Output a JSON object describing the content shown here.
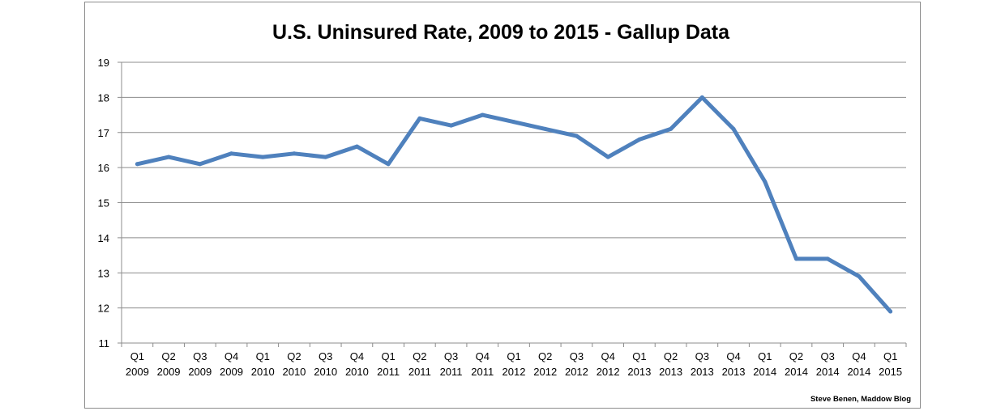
{
  "chart_data": {
    "type": "line",
    "title": "U.S. Uninsured Rate, 2009 to 2015 - Gallup Data",
    "xlabel": "",
    "ylabel": "",
    "ylim": [
      11,
      19
    ],
    "yticks": [
      11,
      12,
      13,
      14,
      15,
      16,
      17,
      18,
      19
    ],
    "grid": true,
    "legend": "none",
    "line_color": "#4f81bd",
    "categories": [
      [
        "Q1",
        "2009"
      ],
      [
        "Q2",
        "2009"
      ],
      [
        "Q3",
        "2009"
      ],
      [
        "Q4",
        "2009"
      ],
      [
        "Q1",
        "2010"
      ],
      [
        "Q2",
        "2010"
      ],
      [
        "Q3",
        "2010"
      ],
      [
        "Q4",
        "2010"
      ],
      [
        "Q1",
        "2011"
      ],
      [
        "Q2",
        "2011"
      ],
      [
        "Q3",
        "2011"
      ],
      [
        "Q4",
        "2011"
      ],
      [
        "Q1",
        "2012"
      ],
      [
        "Q2",
        "2012"
      ],
      [
        "Q3",
        "2012"
      ],
      [
        "Q4",
        "2012"
      ],
      [
        "Q1",
        "2013"
      ],
      [
        "Q2",
        "2013"
      ],
      [
        "Q3",
        "2013"
      ],
      [
        "Q4",
        "2013"
      ],
      [
        "Q1",
        "2014"
      ],
      [
        "Q2",
        "2014"
      ],
      [
        "Q3",
        "2014"
      ],
      [
        "Q4",
        "2014"
      ],
      [
        "Q1",
        "2015"
      ]
    ],
    "series": [
      {
        "values": [
          16.1,
          16.3,
          16.1,
          16.4,
          16.3,
          16.4,
          16.3,
          16.6,
          16.1,
          17.4,
          17.2,
          17.5,
          17.3,
          17.1,
          16.9,
          16.3,
          16.8,
          17.1,
          18.0,
          17.1,
          15.6,
          13.4,
          13.4,
          12.9,
          11.9
        ]
      }
    ],
    "credit": "Steve Benen, Maddow Blog"
  }
}
